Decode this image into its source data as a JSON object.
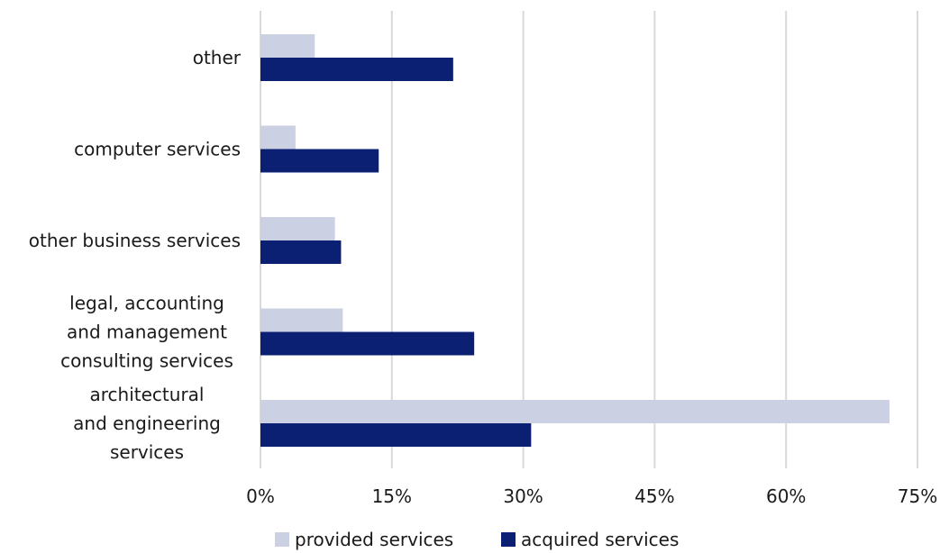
{
  "chart_data": {
    "type": "bar",
    "orientation": "horizontal",
    "categories": [
      [
        "other"
      ],
      [
        "computer services"
      ],
      [
        "other business services"
      ],
      [
        "legal, accounting",
        "and management",
        "consulting services"
      ],
      [
        "architectural",
        "and engineering",
        "services"
      ]
    ],
    "series": [
      {
        "name": "provided services",
        "color": "#cbd0e3",
        "values": [
          6.2,
          4.0,
          8.5,
          9.4,
          71.8
        ]
      },
      {
        "name": "acquired services",
        "color": "#0b1f73",
        "values": [
          22.0,
          13.5,
          9.2,
          24.4,
          30.9
        ]
      }
    ],
    "xlim": [
      0,
      75
    ],
    "xticks": [
      0,
      15,
      30,
      45,
      60,
      75
    ],
    "tick_suffix": "%",
    "grid": true,
    "legend_position": "bottom"
  }
}
